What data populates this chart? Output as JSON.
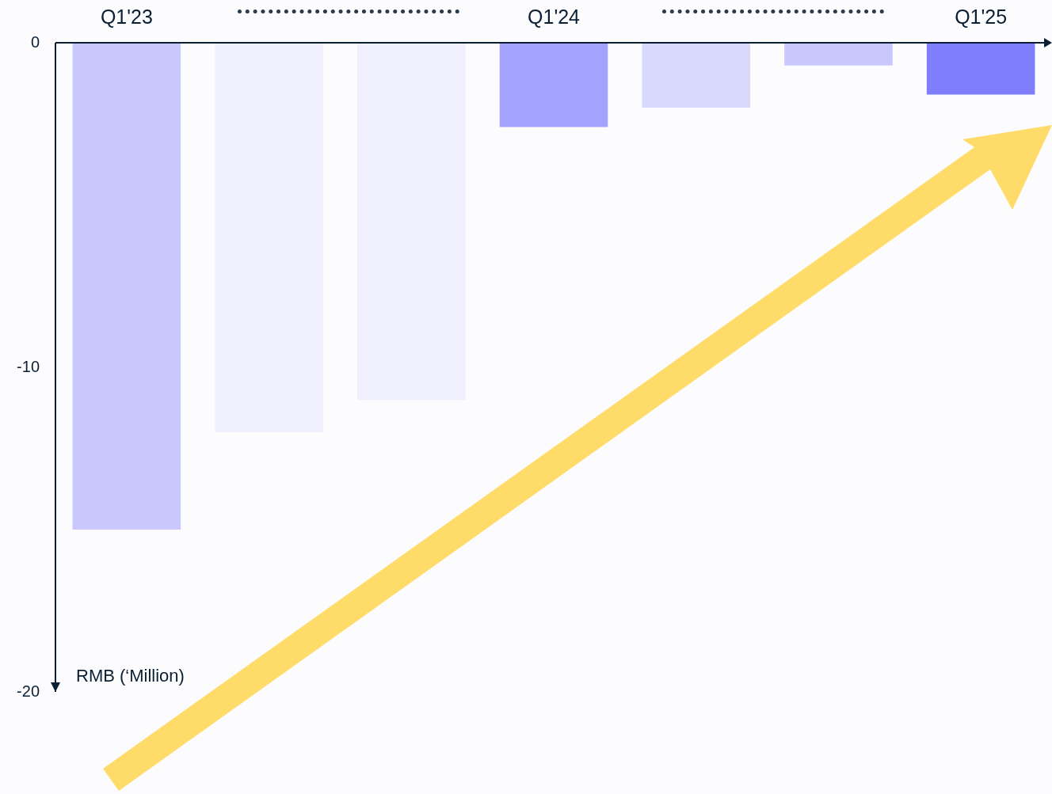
{
  "chart_data": {
    "type": "bar",
    "ylabel": "RMB (‘Million)",
    "categories": [
      "Q1'23",
      null,
      null,
      "Q1'24",
      null,
      null,
      "Q1'25"
    ],
    "values": [
      -15,
      -12,
      -11,
      -2.6,
      -2,
      -0.7,
      -1.6
    ],
    "colors": [
      "#c8c8fc",
      "#efeffd",
      "#efeffd",
      "#a3a3fd",
      "#d8d8fc",
      "#c8c8fc",
      "#7f7ffd"
    ],
    "ylim": [
      -20,
      0
    ],
    "yticks": [
      -20,
      -10,
      0
    ]
  }
}
